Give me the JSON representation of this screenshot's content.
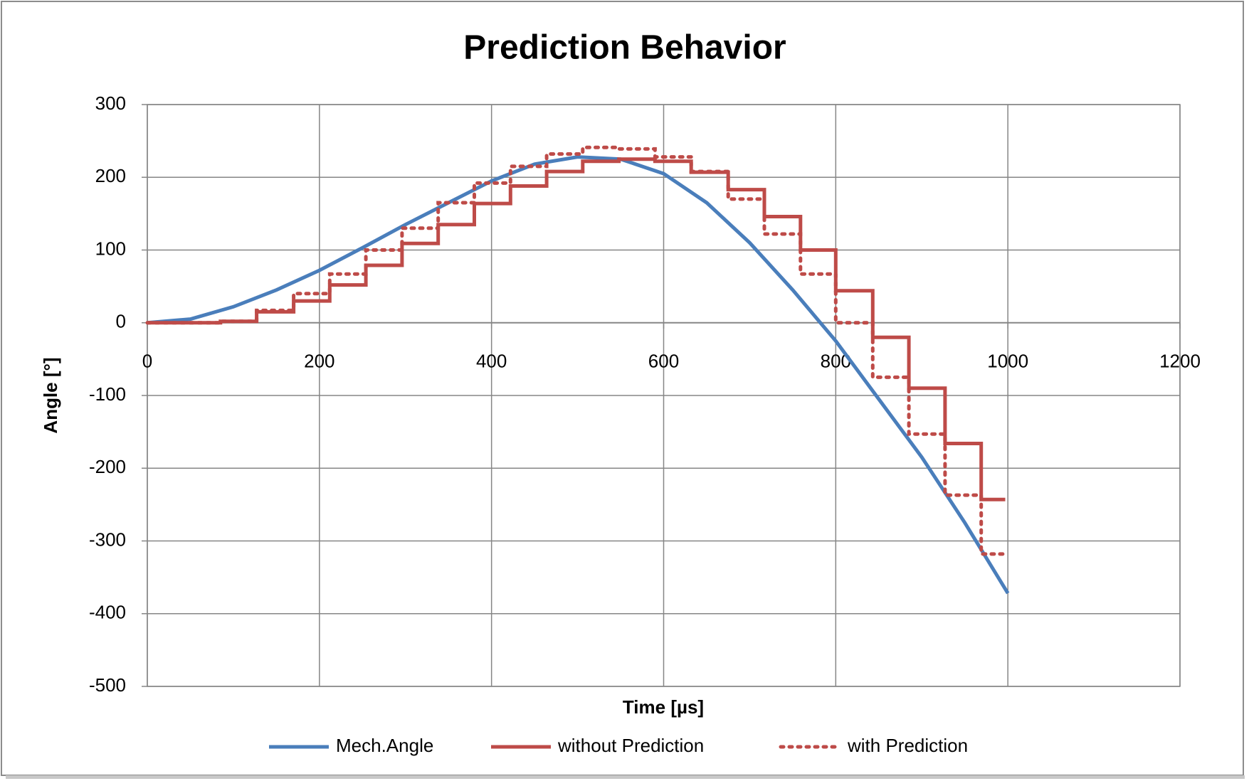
{
  "chart_data": {
    "type": "line",
    "title": "Prediction Behavior",
    "x_label": "Time [µs]",
    "y_label": "Angle [°]",
    "xlim": [
      0,
      1200
    ],
    "xticks": [
      0,
      200,
      400,
      600,
      800,
      1000,
      1200
    ],
    "ylim": [
      -500,
      300
    ],
    "yticks": [
      -500,
      -400,
      -300,
      -200,
      -100,
      0,
      100,
      200,
      300
    ],
    "grid": true,
    "legend": "bottom",
    "series": [
      {
        "name": "Mech.Angle",
        "color": "#4a7ebb",
        "style": "solid",
        "x": [
          0,
          50,
          100,
          150,
          200,
          250,
          300,
          350,
          400,
          450,
          500,
          550,
          600,
          650,
          700,
          750,
          800,
          850,
          900,
          950,
          1000
        ],
        "values": [
          0,
          5,
          22,
          45,
          72,
          103,
          135,
          165,
          195,
          218,
          228,
          225,
          205,
          165,
          110,
          45,
          -25,
          -105,
          -185,
          -275,
          -372
        ]
      },
      {
        "name": "without Prediction",
        "color": "#be4b48",
        "style": "solid",
        "x": [
          0,
          85,
          85,
          127,
          127,
          170,
          170,
          212,
          212,
          254,
          254,
          296,
          296,
          338,
          338,
          380,
          380,
          422,
          422,
          464,
          464,
          506,
          506,
          548,
          548,
          590,
          590,
          632,
          632,
          675,
          675,
          717,
          717,
          759,
          759,
          800,
          800,
          843,
          843,
          885,
          885,
          927,
          927,
          969,
          969,
          997
        ],
        "values": [
          0,
          0,
          2,
          2,
          15,
          15,
          30,
          30,
          52,
          52,
          79,
          79,
          109,
          109,
          135,
          135,
          164,
          164,
          188,
          188,
          208,
          208,
          222,
          222,
          225,
          225,
          222,
          222,
          207,
          207,
          183,
          183,
          146,
          146,
          100,
          100,
          44,
          44,
          -20,
          -20,
          -90,
          -90,
          -166,
          -166,
          -243,
          -243
        ]
      },
      {
        "name": "with Prediction",
        "color": "#be4b48",
        "style": "dotted",
        "x": [
          0,
          85,
          85,
          127,
          127,
          170,
          170,
          212,
          212,
          254,
          254,
          296,
          296,
          338,
          338,
          380,
          380,
          422,
          422,
          464,
          464,
          506,
          506,
          548,
          548,
          590,
          590,
          632,
          632,
          675,
          675,
          717,
          717,
          759,
          759,
          800,
          800,
          843,
          843,
          885,
          885,
          927,
          927,
          969,
          969,
          997
        ],
        "values": [
          0,
          0,
          2,
          2,
          17,
          17,
          40,
          40,
          67,
          67,
          100,
          100,
          130,
          130,
          165,
          165,
          192,
          192,
          215,
          215,
          232,
          232,
          241,
          241,
          239,
          239,
          228,
          228,
          208,
          208,
          170,
          170,
          122,
          122,
          67,
          67,
          0,
          0,
          -75,
          -75,
          -153,
          -153,
          -237,
          -237,
          -318,
          -318
        ]
      }
    ]
  }
}
